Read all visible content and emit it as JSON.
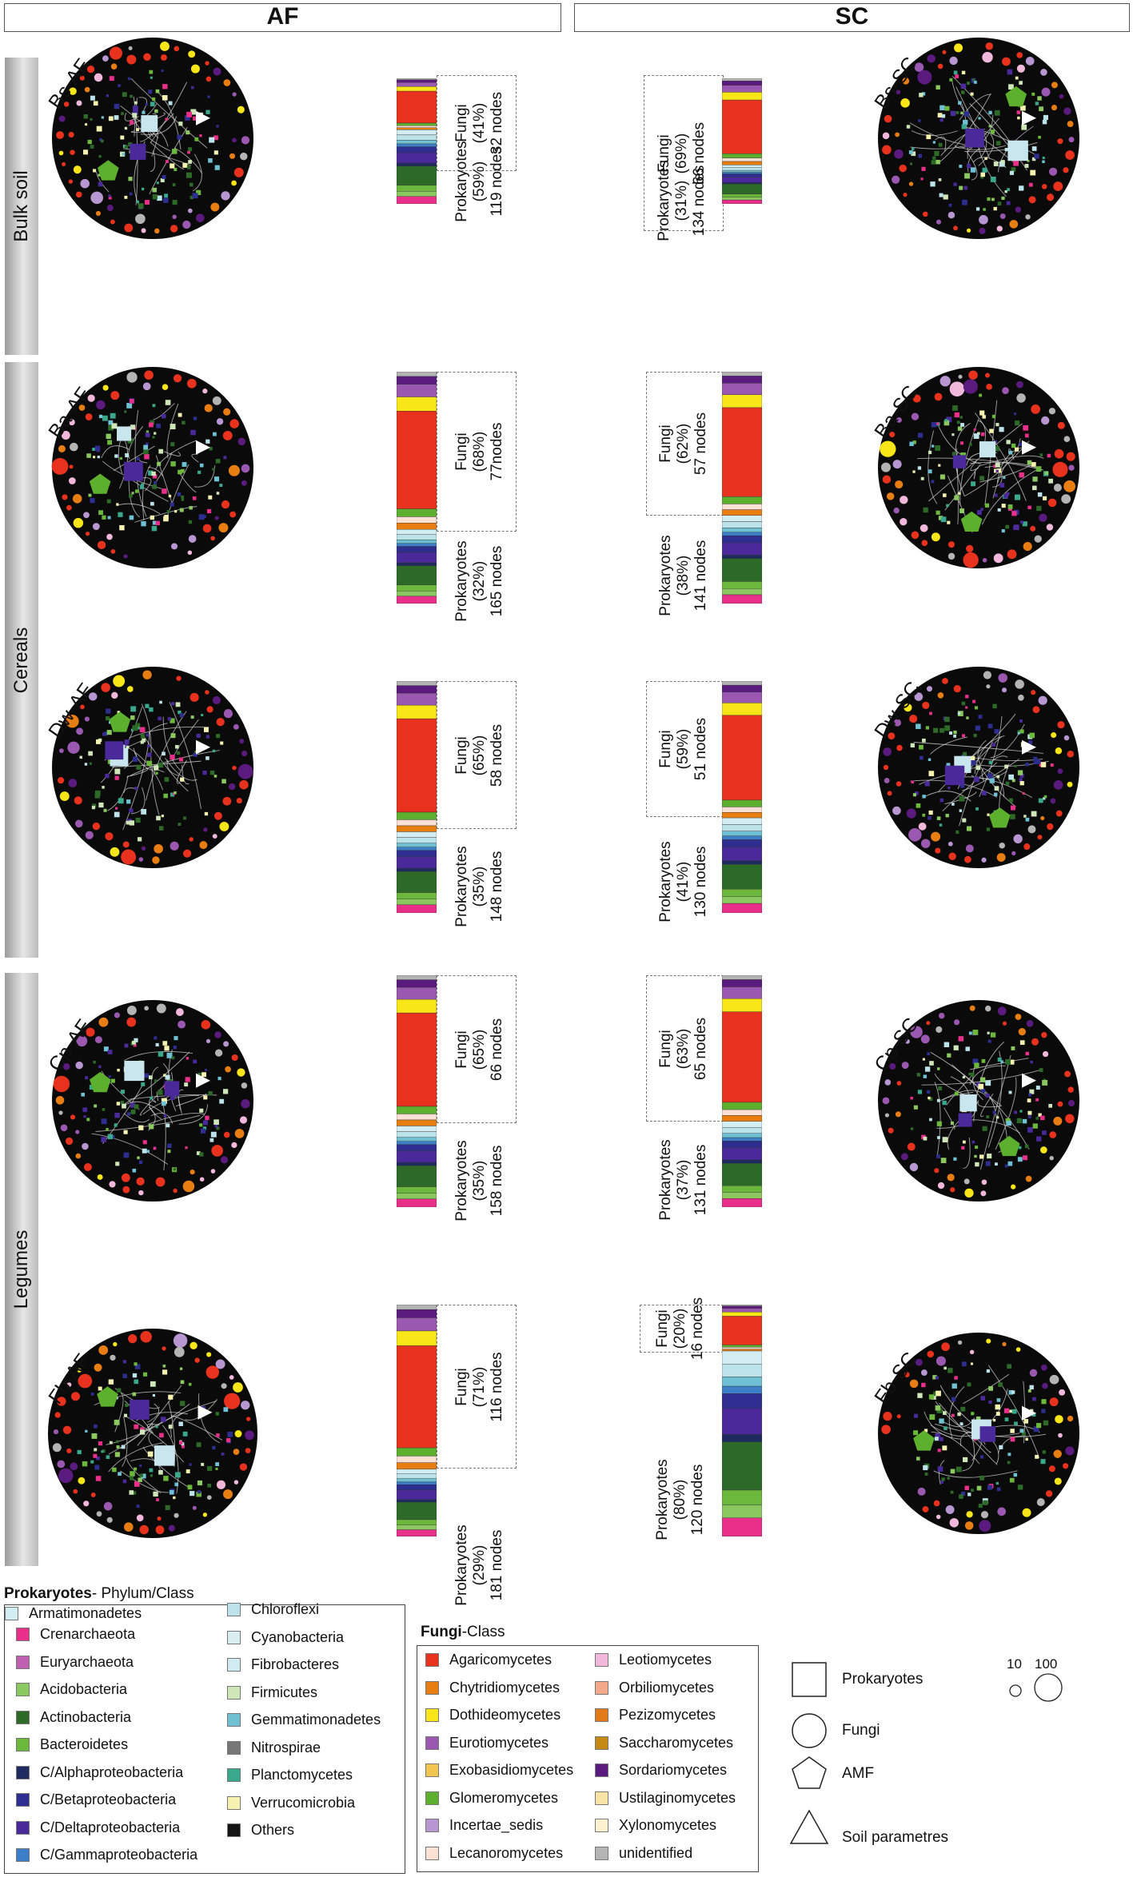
{
  "headers": {
    "af": "AF",
    "sc": "SC"
  },
  "rows": {
    "bulk": "Bulk soil",
    "cereals": "Cereals",
    "legumes": "Legumes"
  },
  "networks": [
    {
      "label": "Bs-AF",
      "fungi": {
        "group": "Fungi",
        "pct": "(41%)",
        "nodes": "32 nodes"
      },
      "prok": {
        "group": "Prokaryotes",
        "pct": "(59%)",
        "nodes": "119 nodes"
      }
    },
    {
      "label": "Bs-SC",
      "fungi": {
        "group": "Fungi",
        "pct": "(69%)",
        "nodes": "66 nodes"
      },
      "prok": {
        "group": "Prokaryotes",
        "pct": "(31%)",
        "nodes": "134 nodes"
      }
    },
    {
      "label": "Ba-AF",
      "fungi": {
        "group": "Fungi",
        "pct": "(68%)",
        "nodes": "77nodes"
      },
      "prok": {
        "group": "Prokaryotes",
        "pct": "(32%)",
        "nodes": "165 nodes"
      }
    },
    {
      "label": "Ba-SC",
      "fungi": {
        "group": "Fungi",
        "pct": "(62%)",
        "nodes": "57 nodes"
      },
      "prok": {
        "group": "Prokaryotes",
        "pct": "(38%)",
        "nodes": "141 nodes"
      }
    },
    {
      "label": "Dw-AF",
      "fungi": {
        "group": "Fungi",
        "pct": "(65%)",
        "nodes": "58 nodes"
      },
      "prok": {
        "group": "Prokaryotes",
        "pct": "(35%)",
        "nodes": "148 nodes"
      }
    },
    {
      "label": "Dw-SC",
      "fungi": {
        "group": "Fungi",
        "pct": "(59%)",
        "nodes": "51 nodes"
      },
      "prok": {
        "group": "Prokaryotes",
        "pct": "(41%)",
        "nodes": "130 nodes"
      }
    },
    {
      "label": "Cp-AF",
      "fungi": {
        "group": "Fungi",
        "pct": "(65%)",
        "nodes": "66 nodes"
      },
      "prok": {
        "group": "Prokaryotes",
        "pct": "(35%)",
        "nodes": "158 nodes"
      }
    },
    {
      "label": "Cp-SC",
      "fungi": {
        "group": "Fungi",
        "pct": "(63%)",
        "nodes": "65 nodes"
      },
      "prok": {
        "group": "Prokaryotes",
        "pct": "(37%)",
        "nodes": "131 nodes"
      }
    },
    {
      "label": "Fb-AF",
      "fungi": {
        "group": "Fungi",
        "pct": "(71%)",
        "nodes": "116 nodes"
      },
      "prok": {
        "group": "Prokaryotes",
        "pct": "(29%)",
        "nodes": "181 nodes"
      }
    },
    {
      "label": "Fb-SC",
      "fungi": {
        "group": "Fungi",
        "pct": "(20%)",
        "nodes": "16 nodes"
      },
      "prok": {
        "group": "Prokaryotes",
        "pct": "(80%)",
        "nodes": "120 nodes"
      }
    }
  ],
  "legend_prok": {
    "title_bold": "Prokaryotes",
    "title_rest": "- Phylum/Class",
    "items": [
      {
        "label": "Crenarchaeota",
        "color": "#e8308a"
      },
      {
        "label": "Euryarchaeota",
        "color": "#c060b0"
      },
      {
        "label": "Acidobacteria",
        "color": "#8cc860"
      },
      {
        "label": "Actinobacteria",
        "color": "#2d6a28"
      },
      {
        "label": "Bacteroidetes",
        "color": "#6cb83c"
      },
      {
        "label": "C/Alphaproteobacteria",
        "color": "#1e2a60"
      },
      {
        "label": "C/Betaproteobacteria",
        "color": "#2e2e90"
      },
      {
        "label": "C/Deltaproteobacteria",
        "color": "#4a2a9a"
      },
      {
        "label": "C/Gammaproteobacteria",
        "color": "#3c7ec8"
      },
      {
        "label": "Chloroflexi",
        "color": "#bde3ea"
      },
      {
        "label": "Cyanobacteria",
        "color": "#d8eef0"
      },
      {
        "label": "Fibrobacteres",
        "color": "#d0ecf2"
      },
      {
        "label": "Firmicutes",
        "color": "#cfe6b8"
      },
      {
        "label": "Gemmatimonadetes",
        "color": "#6ec0d2"
      },
      {
        "label": "Nitrospirae",
        "color": "#777777"
      },
      {
        "label": "Planctomycetes",
        "color": "#3aa88c"
      },
      {
        "label": "Verrucomicrobia",
        "color": "#f6f2b0"
      },
      {
        "label": "Others",
        "color": "#151515"
      },
      {
        "label": "Armatimonadetes",
        "color": "#d2eef2"
      }
    ]
  },
  "legend_fungi": {
    "title_bold": "Fungi",
    "title_rest": "-Class",
    "items": [
      {
        "label": "Agaricomycetes",
        "color": "#e8321e"
      },
      {
        "label": "Chytridiomycetes",
        "color": "#e87e12"
      },
      {
        "label": "Dothideomycetes",
        "color": "#f8e618"
      },
      {
        "label": "Eurotiomycetes",
        "color": "#9a58b0"
      },
      {
        "label": "Exobasidiomycetes",
        "color": "#f2c450"
      },
      {
        "label": "Glomeromycetes",
        "color": "#5cb02e"
      },
      {
        "label": "Incertae_sedis",
        "color": "#b896d2"
      },
      {
        "label": "Lecanoromycetes",
        "color": "#fbe0d4"
      },
      {
        "label": "Leotiomycetes",
        "color": "#f2b8dc"
      },
      {
        "label": "Orbiliomycetes",
        "color": "#f4a88a"
      },
      {
        "label": "Pezizomycetes",
        "color": "#e27a18"
      },
      {
        "label": "Saccharomycetes",
        "color": "#c48a14"
      },
      {
        "label": "Sordariomycetes",
        "color": "#5a1a7e"
      },
      {
        "label": "Ustilaginomycetes",
        "color": "#f8e4a4"
      },
      {
        "label": "Xylonomycetes",
        "color": "#fcf2d0"
      },
      {
        "label": "unidentified",
        "color": "#b4b4b4"
      }
    ]
  },
  "shape_legend": {
    "prokaryotes": "Prokaryotes",
    "fungi": "Fungi",
    "amf": "AMF",
    "soil": "Soil parametres",
    "size_small": "10",
    "size_large": "100"
  }
}
